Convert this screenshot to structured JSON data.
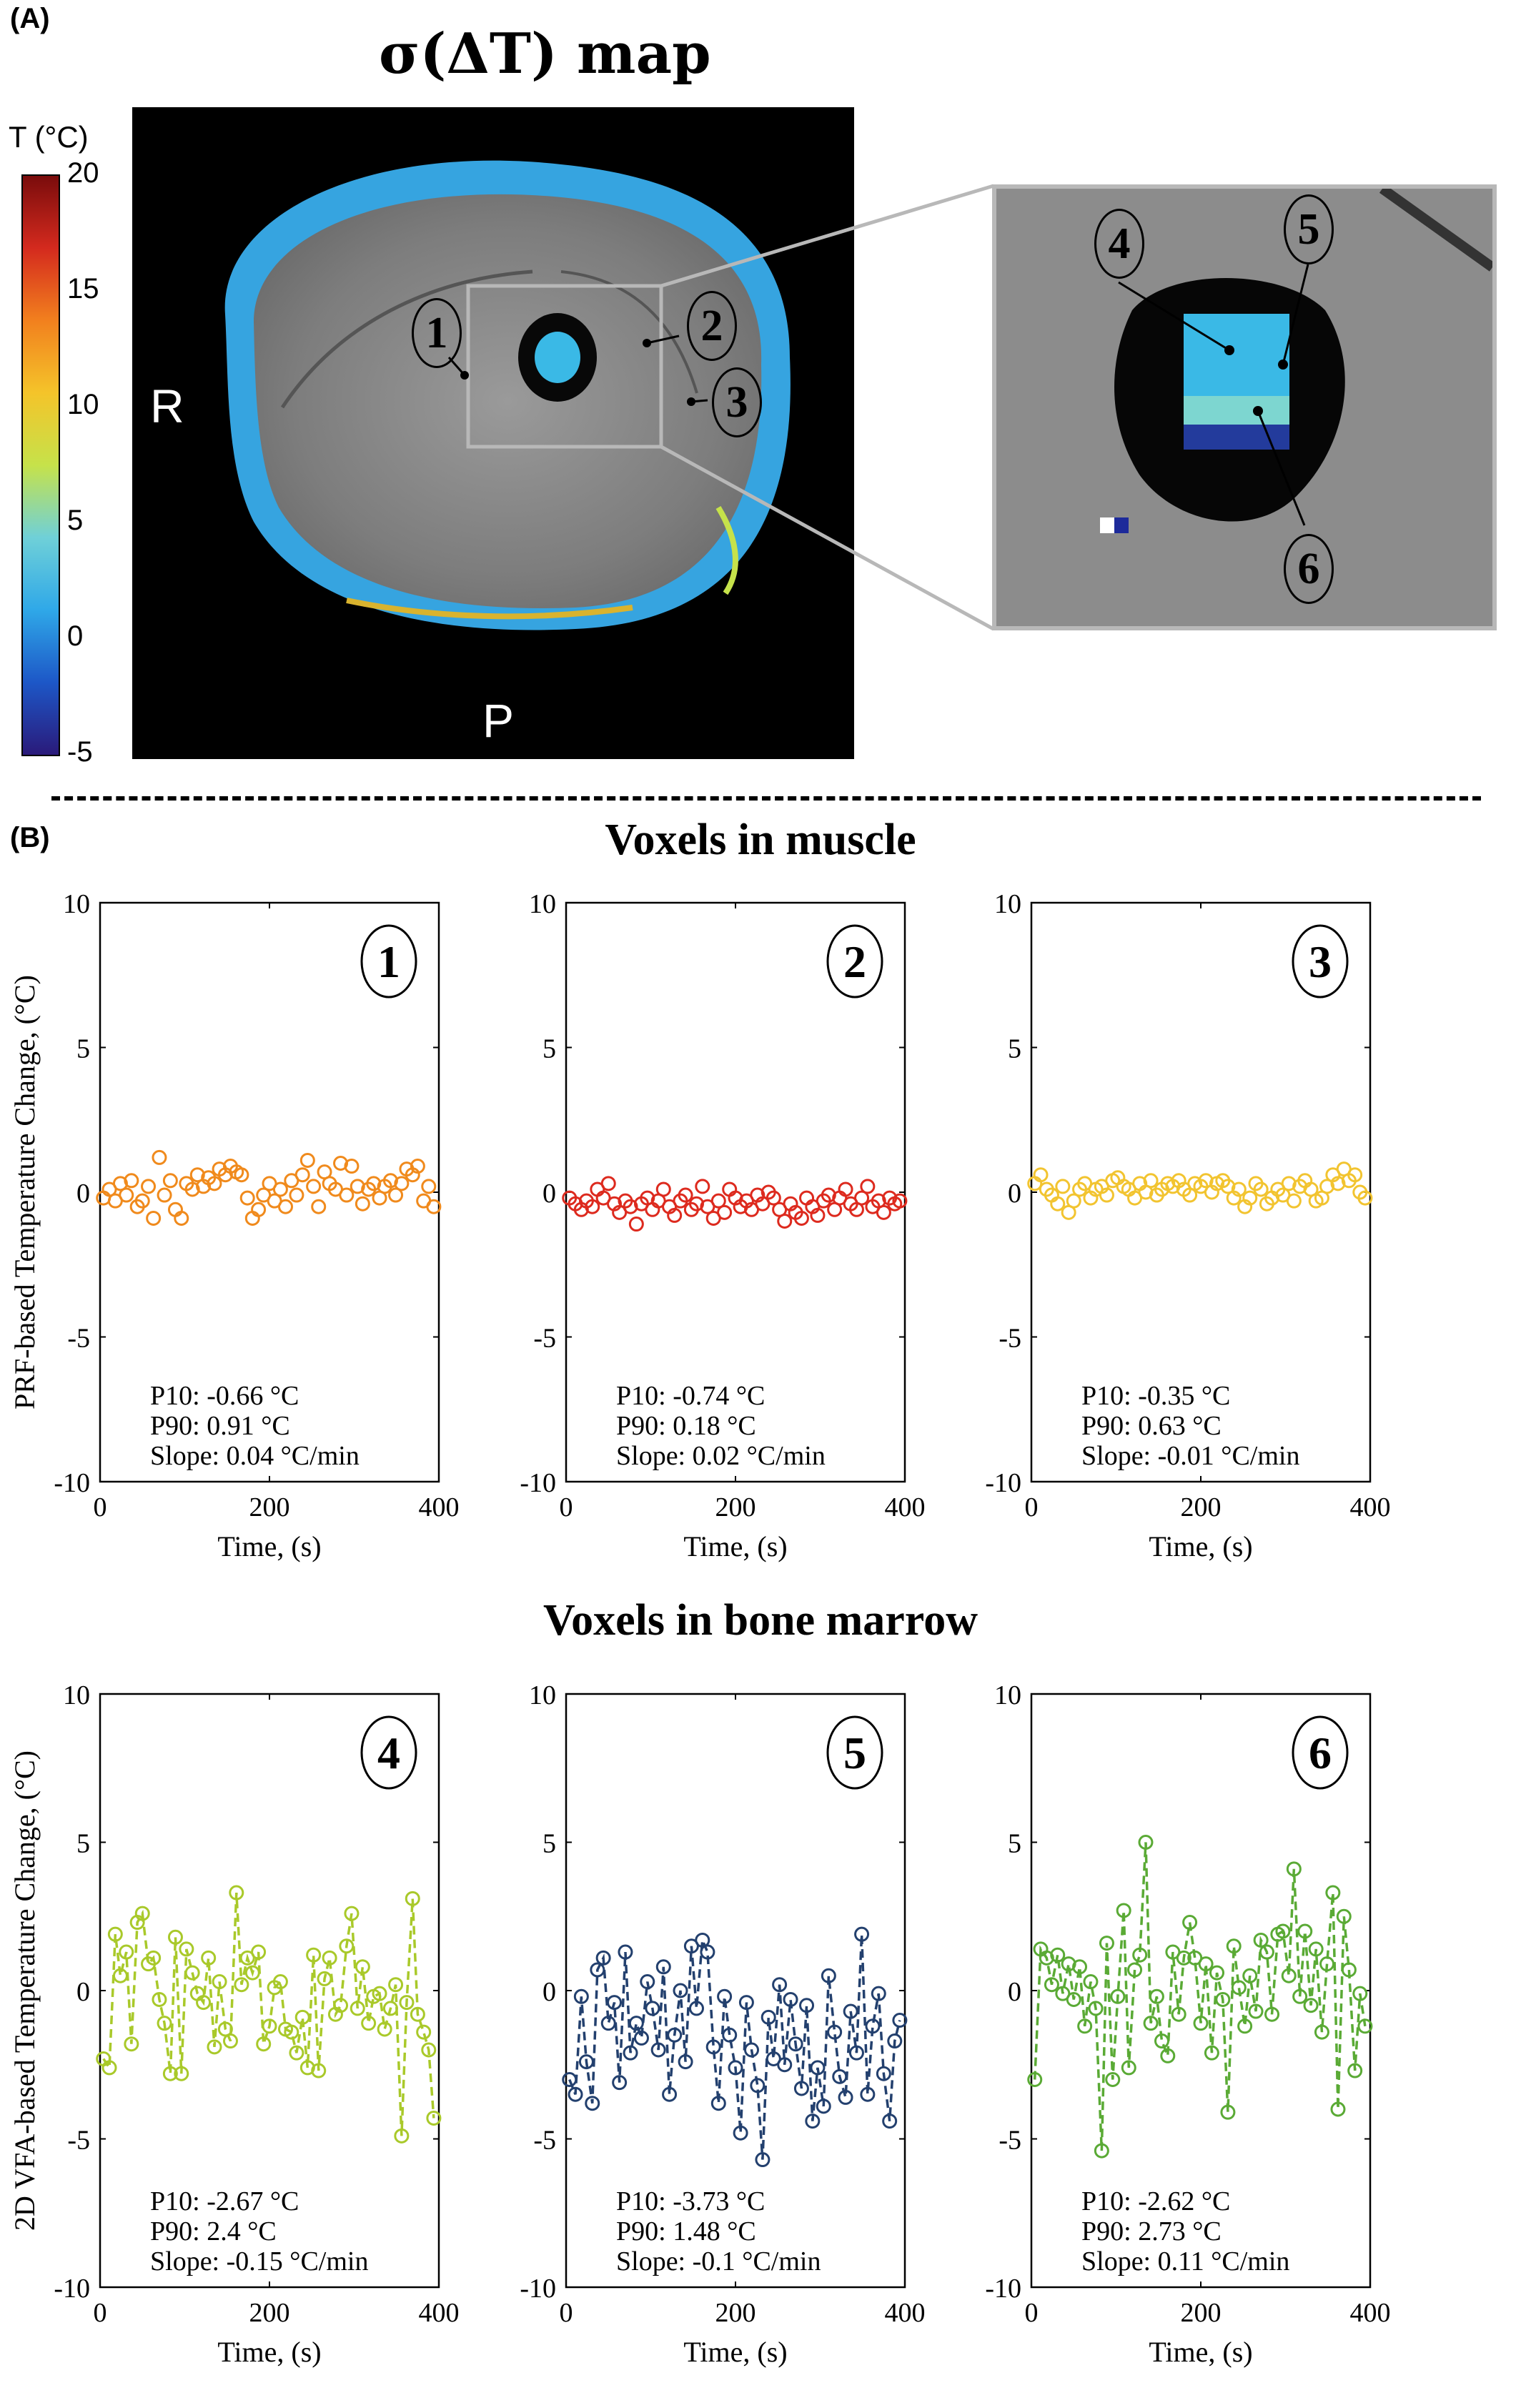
{
  "panel_a": {
    "label": "(A)",
    "title": "σ(ΔT) map",
    "colorbar": {
      "title": "T (°C)",
      "ticks": [
        "20",
        "15",
        "10",
        "5",
        "0",
        "-5"
      ],
      "range": [
        -5,
        20
      ],
      "colors": [
        "#2a1a7a",
        "#1d57c7",
        "#2fa8e8",
        "#6fd0d8",
        "#c6e24a",
        "#f4c42a",
        "#f2801e",
        "#d42a1e",
        "#7a0c0c"
      ]
    },
    "orientation_labels": {
      "right": "R",
      "posterior": "P"
    },
    "markers": [
      "1",
      "2",
      "3",
      "4",
      "5",
      "6"
    ]
  },
  "panel_b": {
    "label": "(B)",
    "muscle_title": "Voxels in muscle",
    "marrow_title": "Voxels in bone marrow"
  },
  "chart_data": [
    {
      "type": "scatter",
      "panel_number": "1",
      "color": "#f08a1c",
      "ylabel": "PRF-based Temperature Change, (°C)",
      "xlabel": "Time, (s)",
      "xlim": [
        0,
        400
      ],
      "ylim": [
        -10,
        10
      ],
      "xticks": [
        "0",
        "200",
        "400"
      ],
      "yticks": [
        "10",
        "5",
        "0",
        "-5",
        "-10"
      ],
      "stats": [
        "P10: -0.66 °C",
        "P90: 0.91 °C",
        "Slope: 0.04 °C/min"
      ],
      "x": [
        4,
        11,
        18,
        24,
        31,
        37,
        44,
        50,
        57,
        63,
        70,
        76,
        83,
        89,
        96,
        102,
        109,
        115,
        122,
        128,
        135,
        141,
        148,
        154,
        161,
        167,
        174,
        180,
        187,
        193,
        200,
        206,
        213,
        219,
        226,
        232,
        239,
        245,
        252,
        258,
        265,
        271,
        278,
        284,
        291,
        297,
        304,
        310,
        317,
        323,
        330,
        336,
        343,
        349,
        356,
        362,
        369,
        375,
        382,
        388,
        394
      ],
      "y": [
        -0.2,
        0.1,
        -0.3,
        0.3,
        -0.1,
        0.4,
        -0.5,
        -0.3,
        0.2,
        -0.9,
        1.2,
        -0.1,
        0.4,
        -0.6,
        -0.9,
        0.3,
        0.1,
        0.6,
        0.2,
        0.5,
        0.3,
        0.8,
        0.6,
        0.9,
        0.7,
        0.6,
        -0.2,
        -0.9,
        -0.6,
        -0.1,
        0.3,
        -0.3,
        0.1,
        -0.5,
        0.4,
        -0.1,
        0.6,
        1.1,
        0.2,
        -0.5,
        0.7,
        0.3,
        0.1,
        1.0,
        -0.1,
        0.9,
        0.2,
        -0.4,
        0.1,
        0.3,
        -0.2,
        0.2,
        0.4,
        -0.1,
        0.3,
        0.8,
        0.6,
        0.9,
        -0.3,
        0.2,
        -0.5
      ]
    },
    {
      "type": "scatter",
      "panel_number": "2",
      "color": "#dd2a1e",
      "ylabel": "",
      "xlabel": "Time, (s)",
      "xlim": [
        0,
        400
      ],
      "ylim": [
        -10,
        10
      ],
      "xticks": [
        "0",
        "200",
        "400"
      ],
      "yticks": [
        "10",
        "5",
        "0",
        "-5",
        "-10"
      ],
      "stats": [
        "P10: -0.74 °C",
        "P90: 0.18 °C",
        "Slope: 0.02 °C/min"
      ],
      "x": [
        4,
        11,
        18,
        24,
        31,
        37,
        44,
        50,
        57,
        63,
        70,
        76,
        83,
        89,
        96,
        102,
        109,
        115,
        122,
        128,
        135,
        141,
        148,
        154,
        161,
        167,
        174,
        180,
        187,
        193,
        200,
        206,
        213,
        219,
        226,
        232,
        239,
        245,
        252,
        258,
        265,
        271,
        278,
        284,
        291,
        297,
        304,
        310,
        317,
        323,
        330,
        336,
        343,
        349,
        356,
        362,
        369,
        375,
        382,
        388,
        394
      ],
      "y": [
        -0.2,
        -0.4,
        -0.6,
        -0.3,
        -0.5,
        0.1,
        -0.2,
        0.3,
        -0.4,
        -0.7,
        -0.3,
        -0.5,
        -1.1,
        -0.4,
        -0.2,
        -0.6,
        -0.3,
        0.1,
        -0.5,
        -0.8,
        -0.3,
        -0.1,
        -0.6,
        -0.4,
        0.2,
        -0.5,
        -0.9,
        -0.3,
        -0.7,
        0.1,
        -0.2,
        -0.5,
        -0.3,
        -0.6,
        -0.1,
        -0.4,
        0.0,
        -0.2,
        -0.6,
        -1.0,
        -0.4,
        -0.7,
        -0.9,
        -0.2,
        -0.5,
        -0.8,
        -0.3,
        -0.1,
        -0.6,
        -0.2,
        0.1,
        -0.4,
        -0.6,
        -0.2,
        0.2,
        -0.5,
        -0.3,
        -0.7,
        -0.2,
        -0.4,
        -0.3
      ]
    },
    {
      "type": "scatter",
      "panel_number": "3",
      "color": "#f2c430",
      "ylabel": "",
      "xlabel": "Time, (s)",
      "xlim": [
        0,
        400
      ],
      "ylim": [
        -10,
        10
      ],
      "xticks": [
        "0",
        "200",
        "400"
      ],
      "yticks": [
        "10",
        "5",
        "0",
        "-5",
        "-10"
      ],
      "stats": [
        "P10: -0.35 °C",
        "P90: 0.63 °C",
        "Slope: -0.01 °C/min"
      ],
      "x": [
        4,
        11,
        18,
        24,
        31,
        37,
        44,
        50,
        57,
        63,
        70,
        76,
        83,
        89,
        96,
        102,
        109,
        115,
        122,
        128,
        135,
        141,
        148,
        154,
        161,
        167,
        174,
        180,
        187,
        193,
        200,
        206,
        213,
        219,
        226,
        232,
        239,
        245,
        252,
        258,
        265,
        271,
        278,
        284,
        291,
        297,
        304,
        310,
        317,
        323,
        330,
        336,
        343,
        349,
        356,
        362,
        369,
        375,
        382,
        388,
        394
      ],
      "y": [
        0.3,
        0.6,
        0.1,
        -0.1,
        -0.4,
        0.2,
        -0.7,
        -0.3,
        0.1,
        0.3,
        -0.2,
        0.1,
        0.2,
        -0.1,
        0.4,
        0.5,
        0.2,
        0.1,
        -0.2,
        0.3,
        0.0,
        0.4,
        -0.1,
        0.1,
        0.3,
        0.2,
        0.4,
        0.1,
        -0.1,
        0.3,
        0.2,
        0.4,
        0.0,
        0.3,
        0.4,
        0.2,
        -0.2,
        0.1,
        -0.5,
        -0.2,
        0.3,
        0.1,
        -0.4,
        -0.2,
        0.1,
        -0.1,
        0.3,
        -0.3,
        0.2,
        0.4,
        0.1,
        -0.3,
        -0.2,
        0.2,
        0.6,
        0.3,
        0.8,
        0.4,
        0.6,
        0.0,
        -0.2
      ]
    },
    {
      "type": "line",
      "panel_number": "4",
      "color": "#a9c92a",
      "ylabel": "2D VFA-based Temperature Change, (°C)",
      "xlabel": "Time, (s)",
      "xlim": [
        0,
        400
      ],
      "ylim": [
        -10,
        10
      ],
      "xticks": [
        "0",
        "200",
        "400"
      ],
      "yticks": [
        "10",
        "5",
        "0",
        "-5",
        "-10"
      ],
      "stats": [
        "P10: -2.67 °C",
        "P90: 2.4 °C",
        "Slope: -0.15 °C/min"
      ],
      "x": [
        4,
        11,
        18,
        24,
        31,
        37,
        44,
        50,
        57,
        63,
        70,
        76,
        83,
        89,
        96,
        102,
        109,
        115,
        122,
        128,
        135,
        141,
        148,
        154,
        161,
        167,
        174,
        180,
        187,
        193,
        200,
        206,
        213,
        219,
        226,
        232,
        239,
        245,
        252,
        258,
        265,
        271,
        278,
        284,
        291,
        297,
        304,
        310,
        317,
        323,
        330,
        336,
        343,
        349,
        356,
        362,
        369,
        375,
        382,
        388,
        394
      ],
      "y": [
        -2.3,
        -2.6,
        1.9,
        0.5,
        1.3,
        -1.8,
        2.3,
        2.6,
        0.9,
        1.1,
        -0.3,
        -1.1,
        -2.8,
        1.8,
        -2.8,
        1.4,
        0.6,
        -0.1,
        -0.4,
        1.1,
        -1.9,
        0.3,
        -1.3,
        -1.7,
        3.3,
        0.2,
        1.1,
        0.6,
        1.3,
        -1.8,
        -1.2,
        0.1,
        0.3,
        -1.3,
        -1.4,
        -2.1,
        -0.9,
        -2.6,
        1.2,
        -2.7,
        0.4,
        1.1,
        -0.8,
        -0.5,
        1.5,
        2.6,
        -0.6,
        0.8,
        -1.1,
        -0.2,
        -0.1,
        -1.3,
        -0.6,
        0.2,
        -4.9,
        -0.4,
        3.1,
        -0.8,
        -1.4,
        -2.0,
        -4.3
      ]
    },
    {
      "type": "line",
      "panel_number": "5",
      "color": "#23406e",
      "ylabel": "",
      "xlabel": "Time, (s)",
      "xlim": [
        0,
        400
      ],
      "ylim": [
        -10,
        10
      ],
      "xticks": [
        "0",
        "200",
        "400"
      ],
      "yticks": [
        "10",
        "5",
        "0",
        "-5",
        "-10"
      ],
      "stats": [
        "P10: -3.73 °C",
        "P90: 1.48 °C",
        "Slope: -0.1 °C/min"
      ],
      "x": [
        4,
        11,
        18,
        24,
        31,
        37,
        44,
        50,
        57,
        63,
        70,
        76,
        83,
        89,
        96,
        102,
        109,
        115,
        122,
        128,
        135,
        141,
        148,
        154,
        161,
        167,
        174,
        180,
        187,
        193,
        200,
        206,
        213,
        219,
        226,
        232,
        239,
        245,
        252,
        258,
        265,
        271,
        278,
        284,
        291,
        297,
        304,
        310,
        317,
        323,
        330,
        336,
        343,
        349,
        356,
        362,
        369,
        375,
        382,
        388,
        394
      ],
      "y": [
        -3.0,
        -3.5,
        -0.2,
        -2.4,
        -3.8,
        0.7,
        1.1,
        -1.1,
        -0.4,
        -3.1,
        1.3,
        -2.1,
        -1.1,
        -1.6,
        0.3,
        -0.6,
        -2.0,
        0.8,
        -3.5,
        -1.5,
        0.0,
        -2.4,
        1.5,
        -0.6,
        1.7,
        1.3,
        -1.9,
        -3.8,
        -0.2,
        -1.5,
        -2.6,
        -4.8,
        -0.4,
        -2.0,
        -3.2,
        -5.7,
        -0.9,
        -2.3,
        0.2,
        -2.5,
        -0.3,
        -1.8,
        -3.3,
        -0.5,
        -4.4,
        -2.6,
        -3.9,
        0.5,
        -1.4,
        -2.9,
        -3.6,
        -0.7,
        -2.1,
        1.9,
        -3.5,
        -1.2,
        -0.1,
        -2.8,
        -4.4,
        -1.7,
        -1.0
      ]
    },
    {
      "type": "line",
      "panel_number": "6",
      "color": "#5aaa35",
      "ylabel": "",
      "xlabel": "Time, (s)",
      "xlim": [
        0,
        400
      ],
      "ylim": [
        -10,
        10
      ],
      "xticks": [
        "0",
        "200",
        "400"
      ],
      "yticks": [
        "10",
        "5",
        "0",
        "-5",
        "-10"
      ],
      "stats": [
        "P10: -2.62 °C",
        "P90: 2.73 °C",
        "Slope: 0.11 °C/min"
      ],
      "x": [
        4,
        11,
        18,
        24,
        31,
        37,
        44,
        50,
        57,
        63,
        70,
        76,
        83,
        89,
        96,
        102,
        109,
        115,
        122,
        128,
        135,
        141,
        148,
        154,
        161,
        167,
        174,
        180,
        187,
        193,
        200,
        206,
        213,
        219,
        226,
        232,
        239,
        245,
        252,
        258,
        265,
        271,
        278,
        284,
        291,
        297,
        304,
        310,
        317,
        323,
        330,
        336,
        343,
        349,
        356,
        362,
        369,
        375,
        382,
        388,
        394
      ],
      "y": [
        -3.0,
        1.4,
        1.1,
        0.2,
        1.2,
        -0.1,
        0.9,
        -0.3,
        0.8,
        -1.2,
        0.3,
        -0.6,
        -5.4,
        1.6,
        -3.0,
        -0.2,
        2.7,
        -2.6,
        0.7,
        1.2,
        5.0,
        -1.1,
        -0.2,
        -1.7,
        -2.2,
        1.3,
        -0.8,
        1.1,
        2.3,
        1.1,
        -1.1,
        0.9,
        -2.1,
        0.6,
        -0.3,
        -4.1,
        1.5,
        0.1,
        -1.2,
        0.5,
        -0.7,
        1.7,
        1.3,
        -0.8,
        1.9,
        2.0,
        0.5,
        4.1,
        -0.2,
        2.0,
        -0.5,
        1.4,
        -1.4,
        0.9,
        3.3,
        -4.0,
        2.5,
        0.7,
        -2.7,
        -0.1,
        -1.2
      ]
    }
  ]
}
